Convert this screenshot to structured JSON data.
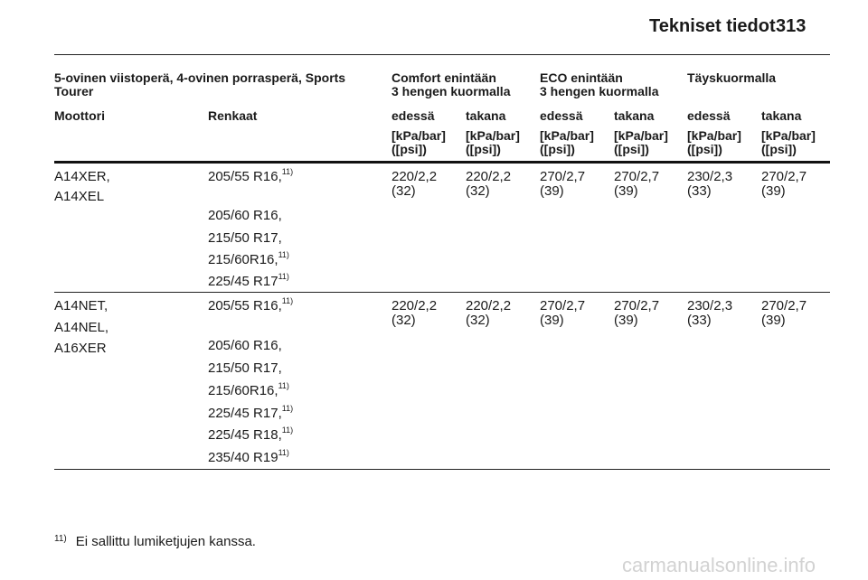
{
  "header": {
    "title": "Tekniset tiedot",
    "page_number": "313"
  },
  "table": {
    "group_headers": {
      "vehicle": "5-ovinen viistoperä, 4-ovinen porrasperä, Sports Tourer",
      "comfort_line1": "Comfort enintään",
      "comfort_line2": "3 hengen kuormalla",
      "eco_line1": "ECO enintään",
      "eco_line2": "3 hengen kuormalla",
      "full": "Täyskuormalla"
    },
    "column_headers": {
      "engine": "Moottori",
      "tyres": "Renkaat",
      "front": "edessä",
      "rear": "takana"
    },
    "unit_line1": "[kPa/bar]",
    "unit_line2": "([psi])",
    "rows": [
      {
        "engines": [
          "A14XER,",
          "A14XEL"
        ],
        "tyres": [
          {
            "size": "205/55 R16,",
            "note": "11)"
          },
          {
            "size": "205/60 R16,",
            "note": ""
          },
          {
            "size": "215/50 R17,",
            "note": ""
          },
          {
            "size": "215/60R16,",
            "note": "11)"
          },
          {
            "size": "225/45 R17",
            "note": "11)"
          }
        ],
        "pressures": [
          {
            "kpa_bar": "220/2,2",
            "psi": "(32)"
          },
          {
            "kpa_bar": "220/2,2",
            "psi": "(32)"
          },
          {
            "kpa_bar": "270/2,7",
            "psi": "(39)"
          },
          {
            "kpa_bar": "270/2,7",
            "psi": "(39)"
          },
          {
            "kpa_bar": "230/2,3",
            "psi": "(33)"
          },
          {
            "kpa_bar": "270/2,7",
            "psi": "(39)"
          }
        ]
      },
      {
        "engines": [
          "A14NET,",
          "A14NEL,",
          "A16XER"
        ],
        "tyres": [
          {
            "size": "205/55 R16,",
            "note": "11)"
          },
          {
            "size": "205/60 R16,",
            "note": ""
          },
          {
            "size": "215/50 R17,",
            "note": ""
          },
          {
            "size": "215/60R16,",
            "note": "11)"
          },
          {
            "size": "225/45 R17,",
            "note": "11)"
          },
          {
            "size": "225/45 R18,",
            "note": "11)"
          },
          {
            "size": "235/40 R19",
            "note": "11)"
          }
        ],
        "pressures": [
          {
            "kpa_bar": "220/2,2",
            "psi": "(32)"
          },
          {
            "kpa_bar": "220/2,2",
            "psi": "(32)"
          },
          {
            "kpa_bar": "270/2,7",
            "psi": "(39)"
          },
          {
            "kpa_bar": "270/2,7",
            "psi": "(39)"
          },
          {
            "kpa_bar": "230/2,3",
            "psi": "(33)"
          },
          {
            "kpa_bar": "270/2,7",
            "psi": "(39)"
          }
        ]
      }
    ]
  },
  "footnote": {
    "marker": "11)",
    "text": "Ei sallittu lumiketjujen kanssa."
  },
  "watermark": "carmanualsonline.info"
}
